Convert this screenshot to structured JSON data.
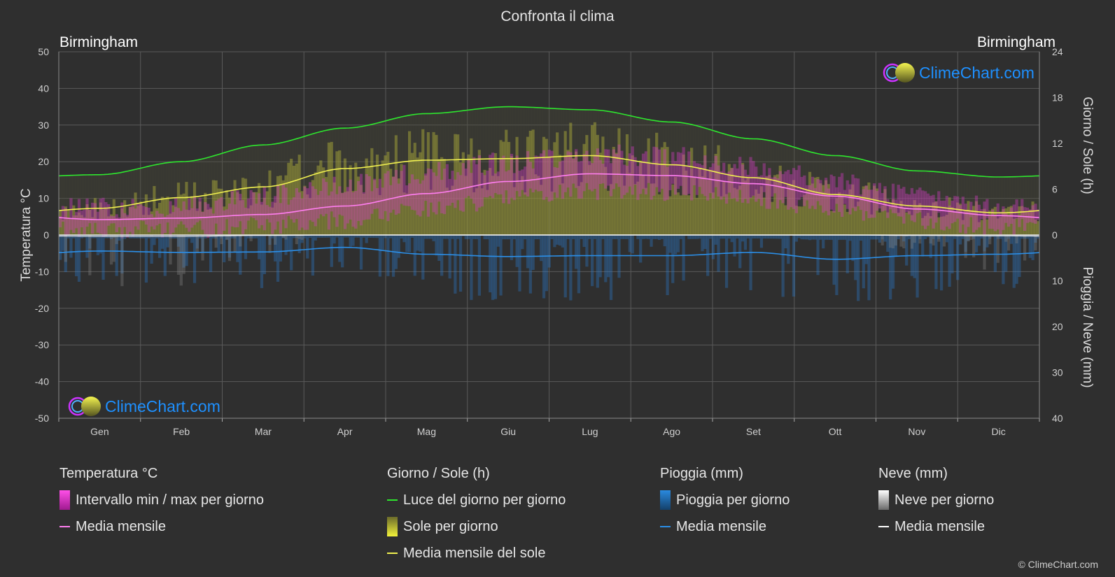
{
  "title": "Confronta il clima",
  "location_left": "Birmingham",
  "location_right": "Birmingham",
  "brand": "ClimeChart.com",
  "copyright": "© ClimeChart.com",
  "colors": {
    "background": "#2f2f2f",
    "temp_range": "#e03cc8",
    "temp_mean": "#ff7ef0",
    "daylight": "#2ee62e",
    "sunshine": "#c8c832",
    "sunshine_mean": "#f0f050",
    "rain": "#2a7fd4",
    "rain_mean": "#2b8fe8",
    "snow": "#cfcfcf",
    "snow_mean": "#ffffff",
    "brand_text": "#1e90ff"
  },
  "chart_data": {
    "type": "line",
    "categories": [
      "Gen",
      "Feb",
      "Mar",
      "Apr",
      "Mag",
      "Giu",
      "Lug",
      "Ago",
      "Set",
      "Ott",
      "Nov",
      "Dic"
    ],
    "left_axis": {
      "label": "Temperatura °C",
      "ylim": [
        -50,
        50
      ],
      "ticks": [
        50,
        40,
        30,
        20,
        10,
        0,
        -10,
        -20,
        -30,
        -40,
        -50
      ]
    },
    "right_axis_top": {
      "label": "Giorno / Sole (h)",
      "ylim": [
        0,
        24
      ],
      "ticks": [
        24,
        18,
        12,
        6,
        0
      ]
    },
    "right_axis_bottom": {
      "label": "Pioggia / Neve (mm)",
      "ylim": [
        0,
        40
      ],
      "ticks": [
        0,
        10,
        20,
        30,
        40
      ]
    },
    "grid": true,
    "series": [
      {
        "name": "Luce del giorno per giorno",
        "axis": "hours",
        "values": [
          7.9,
          9.6,
          11.8,
          14.0,
          15.9,
          16.8,
          16.4,
          14.8,
          12.6,
          10.4,
          8.4,
          7.6
        ]
      },
      {
        "name": "Media mensile del sole",
        "axis": "hours",
        "values": [
          3.5,
          4.9,
          6.3,
          8.7,
          9.8,
          10.0,
          10.4,
          9.2,
          7.5,
          5.3,
          3.8,
          2.9
        ]
      },
      {
        "name": "Media mensile",
        "kind": "temp_mean",
        "axis": "temp",
        "values": [
          4.2,
          4.6,
          5.6,
          7.9,
          11.3,
          14.6,
          16.7,
          16.2,
          14.0,
          10.6,
          7.1,
          5.3
        ]
      },
      {
        "name": "Intervallo min / max per giorno",
        "kind": "temp_range",
        "axis": "temp",
        "min": [
          1.5,
          1.4,
          2.6,
          4.1,
          6.9,
          9.9,
          12.0,
          11.8,
          9.7,
          7.1,
          4.1,
          2.1
        ],
        "max": [
          7.2,
          7.9,
          10.6,
          13.5,
          16.9,
          19.8,
          22.0,
          21.4,
          18.5,
          14.5,
          10.2,
          7.6
        ]
      },
      {
        "name": "Media mensile",
        "kind": "rain_mean",
        "axis": "mm",
        "values": [
          3.5,
          3.8,
          3.7,
          2.7,
          4.2,
          4.7,
          4.5,
          4.5,
          3.8,
          5.3,
          4.5,
          4.2
        ]
      },
      {
        "name": "Media mensile",
        "kind": "snow_mean",
        "axis": "mm",
        "values": [
          0.3,
          0.3,
          0.1,
          0,
          0,
          0,
          0,
          0,
          0,
          0,
          0.1,
          0.2
        ]
      }
    ]
  },
  "legend": {
    "temperature": {
      "title": "Temperatura °C",
      "items": [
        "Intervallo min / max per giorno",
        "Media mensile"
      ]
    },
    "daysun": {
      "title": "Giorno / Sole (h)",
      "items": [
        "Luce del giorno per giorno",
        "Sole per giorno",
        "Media mensile del sole"
      ]
    },
    "rain": {
      "title": "Pioggia (mm)",
      "items": [
        "Pioggia per giorno",
        "Media mensile"
      ]
    },
    "snow": {
      "title": "Neve (mm)",
      "items": [
        "Neve per giorno",
        "Media mensile"
      ]
    }
  }
}
